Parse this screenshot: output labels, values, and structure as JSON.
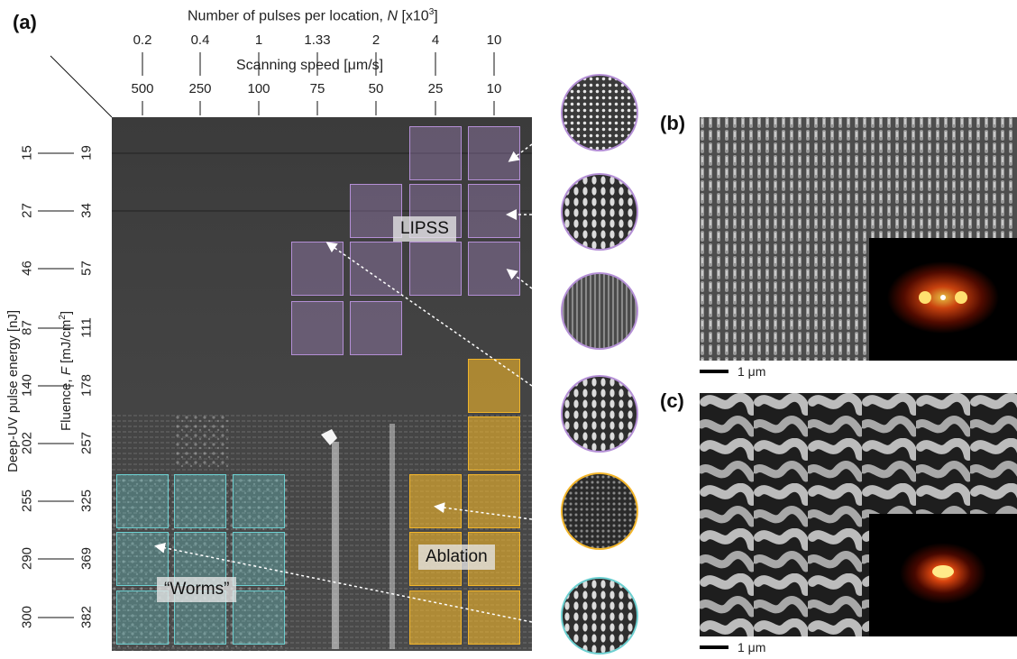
{
  "panels": {
    "a": "(a)",
    "b": "(b)",
    "c": "(c)"
  },
  "top_axis": {
    "pulses_title_prefix": "Number of pulses per location, ",
    "pulses_title_italic": "N",
    "pulses_title_suffix": " [x10",
    "pulses_title_sup": "3",
    "pulses_title_end": "]",
    "pulses_ticks": [
      "0.2",
      "0.4",
      "1",
      "1.33",
      "2",
      "4",
      "10"
    ],
    "speed_title": "Scanning speed [μm/s]",
    "speed_ticks": [
      "500",
      "250",
      "100",
      "75",
      "50",
      "25",
      "10"
    ]
  },
  "left_axis": {
    "energy_title": "Deep-UV pulse energy [nJ]",
    "fluence_title_prefix": "Fluence, ",
    "fluence_title_italic": "F",
    "fluence_title_suffix": " [mJ/cm",
    "fluence_title_sup": "2",
    "fluence_title_end": "]",
    "energy_ticks": [
      "15",
      "27",
      "46",
      "87",
      "140",
      "202",
      "255",
      "290",
      "300"
    ],
    "fluence_ticks": [
      "19",
      "34",
      "57",
      "111",
      "178",
      "257",
      "325",
      "369",
      "382"
    ]
  },
  "region_labels": {
    "lipss": "LIPSS",
    "ablation": "Ablation",
    "worms": "“Worms”"
  },
  "colors": {
    "lipss": "#b48fd6",
    "ablation": "#f2b52a",
    "worms": "#6ccfd0"
  },
  "scale_b": "1 μm",
  "scale_c": "1 μm"
}
